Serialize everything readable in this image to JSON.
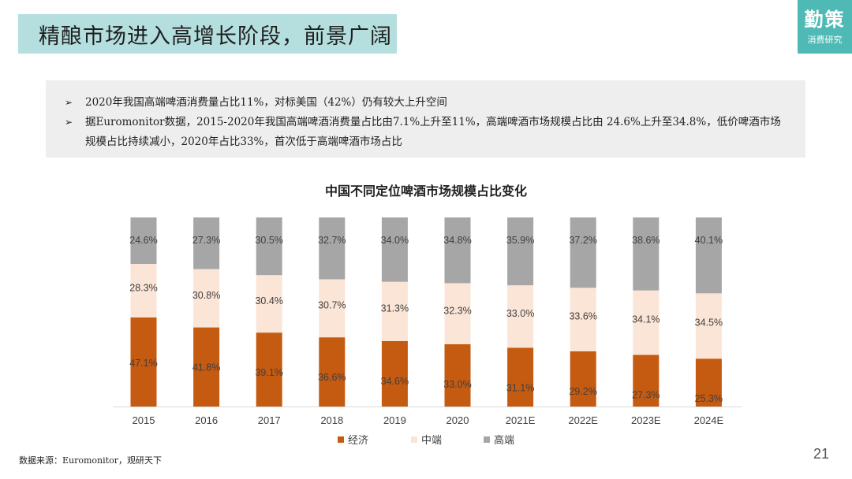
{
  "header": {
    "title": "精酿市场进入高增长阶段，前景广阔",
    "logo_main": "勤策",
    "logo_sub": "消费研究"
  },
  "bullets": [
    "2020年我国高端啤酒消费量占比11%，对标美国（42%）仍有较大上升空间",
    "据Euromonitor数据，2015-2020年我国高端啤酒消费量占比由7.1%上升至11%，高端啤酒市场规模占比由 24.6%上升至34.8%，低价啤酒市场规模占比持续减小，2020年占比33%，首次低于高端啤酒市场占比"
  ],
  "bullet_marker": "➢",
  "chart_data": {
    "type": "bar",
    "stacked": true,
    "title": "中国不同定位啤酒市场规模占比变化",
    "categories": [
      "2015",
      "2016",
      "2017",
      "2018",
      "2019",
      "2020",
      "2021E",
      "2022E",
      "2023E",
      "2024E"
    ],
    "series": [
      {
        "name": "经济",
        "color": "#c55a11",
        "values": [
          47.1,
          41.8,
          39.1,
          36.6,
          34.6,
          33.0,
          31.1,
          29.2,
          27.3,
          25.3
        ]
      },
      {
        "name": "中端",
        "color": "#fbe5d6",
        "values": [
          28.3,
          30.8,
          30.4,
          30.7,
          31.3,
          32.3,
          33.0,
          33.6,
          34.1,
          34.5
        ]
      },
      {
        "name": "高端",
        "color": "#a6a6a6",
        "values": [
          24.6,
          27.3,
          30.5,
          32.7,
          34.0,
          34.8,
          35.9,
          37.2,
          38.6,
          40.1
        ]
      }
    ],
    "labels": [
      [
        "47.1%",
        "41.8%",
        "39.1%",
        "36.6%",
        "34.6%",
        "33.0%",
        "31.1%",
        "29.2%",
        "27.3%",
        "25.3%"
      ],
      [
        "28.3%",
        "30.8%",
        "30.4%",
        "30.7%",
        "31.3%",
        "32.3%",
        "33.0%",
        "33.6%",
        "34.1%",
        "34.5%"
      ],
      [
        "24.6%",
        "27.3%",
        "30.5%",
        "32.7%",
        "34.0%",
        "34.8%",
        "35.9%",
        "37.2%",
        "38.6%",
        "40.1%"
      ]
    ],
    "ylim": [
      0,
      100
    ],
    "legend_position": "bottom"
  },
  "footer": {
    "source": "数据来源：Euromonitor，观研天下",
    "page_number": "21"
  }
}
